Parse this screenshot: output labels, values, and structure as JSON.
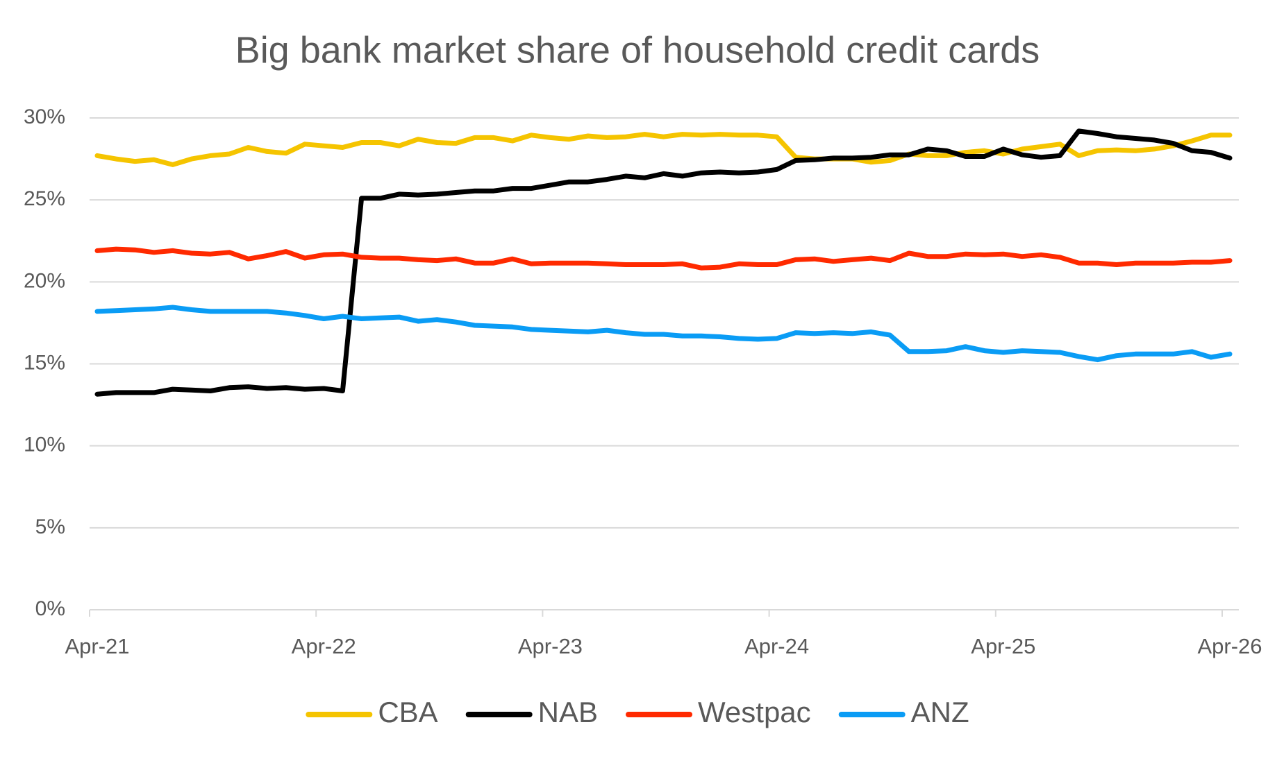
{
  "chart_data": {
    "type": "line",
    "title": "Big bank market share of household credit cards",
    "categories": [
      "Apr-21",
      null,
      null,
      null,
      null,
      null,
      null,
      null,
      null,
      null,
      null,
      null,
      "Apr-22",
      null,
      null,
      null,
      null,
      null,
      null,
      null,
      null,
      null,
      null,
      null,
      "Apr-23",
      null,
      null,
      null,
      null,
      null,
      null,
      null,
      null,
      null,
      null,
      null,
      "Apr-24",
      null,
      null,
      null,
      null,
      null,
      null,
      null,
      null,
      null,
      null,
      null,
      "Apr-25",
      null,
      null,
      null,
      null,
      null,
      null,
      null,
      null,
      null,
      null,
      null,
      "Apr-26"
    ],
    "series": [
      {
        "name": "CBA",
        "color": "#f5c400",
        "values": [
          27.7,
          27.5,
          27.35,
          27.45,
          27.15,
          27.5,
          27.7,
          27.8,
          28.2,
          27.95,
          27.85,
          28.4,
          28.3,
          28.2,
          28.5,
          28.5,
          28.3,
          28.7,
          28.5,
          28.45,
          28.8,
          28.8,
          28.6,
          28.95,
          28.8,
          28.7,
          28.9,
          28.8,
          28.85,
          29.0,
          28.85,
          29.0,
          28.95,
          29.0,
          28.95,
          28.95,
          28.85,
          27.6,
          27.5,
          27.5,
          27.5,
          27.3,
          27.4,
          27.8,
          27.7,
          27.7,
          27.9,
          28.0,
          27.8,
          28.1,
          28.25,
          28.4,
          27.7,
          28.0,
          28.05,
          28.0,
          28.1,
          28.3,
          28.6,
          28.95,
          28.95
        ]
      },
      {
        "name": "NAB",
        "color": "#000000",
        "values": [
          13.15,
          13.25,
          13.25,
          13.25,
          13.45,
          13.4,
          13.35,
          13.55,
          13.6,
          13.5,
          13.55,
          13.45,
          13.5,
          13.35,
          25.1,
          25.1,
          25.35,
          25.3,
          25.35,
          25.45,
          25.55,
          25.55,
          25.7,
          25.7,
          25.9,
          26.1,
          26.1,
          26.25,
          26.45,
          26.35,
          26.6,
          26.45,
          26.65,
          26.7,
          26.65,
          26.7,
          26.85,
          27.4,
          27.45,
          27.55,
          27.55,
          27.6,
          27.75,
          27.75,
          28.1,
          28.0,
          27.65,
          27.65,
          28.1,
          27.75,
          27.6,
          27.7,
          29.2,
          29.05,
          28.85,
          28.75,
          28.65,
          28.45,
          28.0,
          27.9,
          27.55
        ]
      },
      {
        "name": "Westpac",
        "color": "#ff2a00",
        "values": [
          21.9,
          22.0,
          21.95,
          21.8,
          21.9,
          21.75,
          21.7,
          21.8,
          21.4,
          21.6,
          21.85,
          21.45,
          21.65,
          21.7,
          21.5,
          21.45,
          21.45,
          21.35,
          21.3,
          21.4,
          21.15,
          21.15,
          21.4,
          21.1,
          21.15,
          21.15,
          21.15,
          21.1,
          21.05,
          21.05,
          21.05,
          21.1,
          20.85,
          20.9,
          21.1,
          21.05,
          21.05,
          21.35,
          21.4,
          21.25,
          21.35,
          21.45,
          21.3,
          21.75,
          21.55,
          21.55,
          21.7,
          21.65,
          21.7,
          21.55,
          21.65,
          21.5,
          21.15,
          21.15,
          21.05,
          21.15,
          21.15,
          21.15,
          21.2,
          21.2,
          21.3
        ]
      },
      {
        "name": "ANZ",
        "color": "#0a9cf5",
        "values": [
          18.2,
          18.25,
          18.3,
          18.35,
          18.45,
          18.3,
          18.2,
          18.2,
          18.2,
          18.2,
          18.1,
          17.95,
          17.75,
          17.9,
          17.75,
          17.8,
          17.85,
          17.6,
          17.7,
          17.55,
          17.35,
          17.3,
          17.25,
          17.1,
          17.05,
          17.0,
          16.95,
          17.05,
          16.9,
          16.8,
          16.8,
          16.7,
          16.7,
          16.65,
          16.55,
          16.5,
          16.55,
          16.9,
          16.85,
          16.9,
          16.85,
          16.95,
          16.75,
          15.75,
          15.75,
          15.8,
          16.05,
          15.8,
          15.7,
          15.8,
          15.75,
          15.7,
          15.45,
          15.25,
          15.5,
          15.6,
          15.6,
          15.6,
          15.75,
          15.4,
          15.6
        ]
      }
    ],
    "ylim": [
      0,
      30
    ],
    "yticks": [
      {
        "value": 0,
        "label": "0%"
      },
      {
        "value": 5,
        "label": "5%"
      },
      {
        "value": 10,
        "label": "10%"
      },
      {
        "value": 15,
        "label": "15%"
      },
      {
        "value": 20,
        "label": "20%"
      },
      {
        "value": 25,
        "label": "25%"
      },
      {
        "value": 30,
        "label": "30%"
      }
    ],
    "grid": true,
    "legend": "bottom"
  }
}
